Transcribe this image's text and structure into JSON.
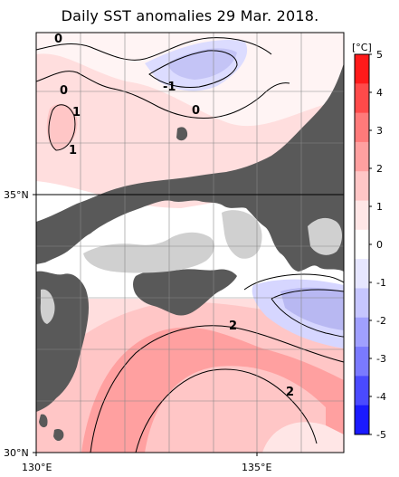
{
  "title": "Daily SST anomalies 29 Mar. 2018.",
  "axes": {
    "lat_labels": [
      {
        "text": "35°N",
        "value": 35
      },
      {
        "text": "30°N",
        "value": 30
      }
    ],
    "lon_labels": [
      {
        "text": "130°E",
        "value": 130
      },
      {
        "text": "135°E",
        "value": 135
      }
    ]
  },
  "colorbar": {
    "unit": "[°C]",
    "ticks": [
      "5",
      "4",
      "3",
      "2",
      "1",
      "0",
      "-1",
      "-2",
      "-3",
      "-4",
      "-5"
    ],
    "colors": [
      "#ff1a1a",
      "#ff4a4a",
      "#ff7a7a",
      "#ffa0a0",
      "#ffc6c6",
      "#ffe6e6",
      "#ffffff",
      "#e6e6ff",
      "#c6c6ff",
      "#a0a0ff",
      "#7a7aff",
      "#4a4aff",
      "#1a1aff"
    ]
  },
  "contour_labels": [
    {
      "text": "0",
      "id": "c0-a"
    },
    {
      "text": "0",
      "id": "c0-b"
    },
    {
      "text": "-1",
      "id": "cm1"
    },
    {
      "text": "0",
      "id": "c0-c"
    },
    {
      "text": "1",
      "id": "c1-a"
    },
    {
      "text": "1",
      "id": "c1-b"
    },
    {
      "text": "2",
      "id": "c2-a"
    },
    {
      "text": "2",
      "id": "c2-b"
    }
  ],
  "colors": {
    "land": "#595959",
    "land_light": "#d2d2d2",
    "sea_warm1": "#ffe0e0",
    "sea_warm2": "#ffc4c4",
    "sea_warm3": "#ff9f9f",
    "sea_cool1": "#d8d8ff",
    "sea_cool2": "#b4b4f4"
  }
}
